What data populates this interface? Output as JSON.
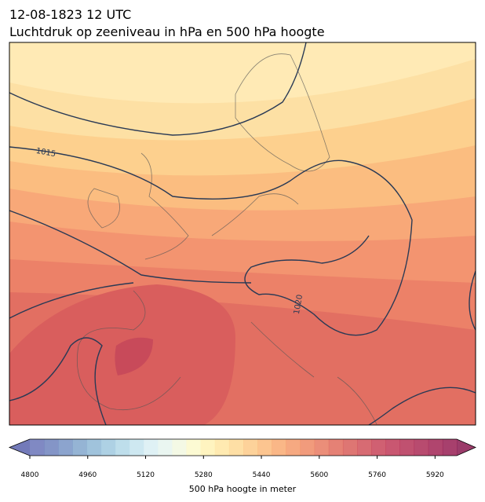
{
  "header": {
    "title_line1": "12-08-1823 12 UTC",
    "title_line2": "Luchtdruk op zeeniveau in hPa en 500 hPa hoogte"
  },
  "map": {
    "contour_labels": [
      "1015",
      "1020"
    ]
  },
  "colorbar": {
    "label": "500 hPa hoogte in meter",
    "range": [
      4800,
      5980
    ],
    "ticks": [
      4800,
      4960,
      5120,
      5280,
      5440,
      5600,
      5760,
      5920
    ],
    "colors": [
      "#6a74b8",
      "#6f83bd",
      "#7894c5",
      "#82a7cd",
      "#8fb8d6",
      "#a0c9df",
      "#b3d8e7",
      "#c6e4ee",
      "#d9eff3",
      "#e6f4ef",
      "#f2f8e0",
      "#fbf9cb",
      "#fff2b5",
      "#ffe6a3",
      "#fed995",
      "#fdca88",
      "#fcbb7c",
      "#f9aa72",
      "#f59a6b",
      "#ef8a65",
      "#e87a61",
      "#e06b5d",
      "#d85e5b",
      "#d0515a",
      "#c84459",
      "#bf3a58",
      "#b53257",
      "#ab2b56",
      "#a22455",
      "#981e54"
    ]
  }
}
